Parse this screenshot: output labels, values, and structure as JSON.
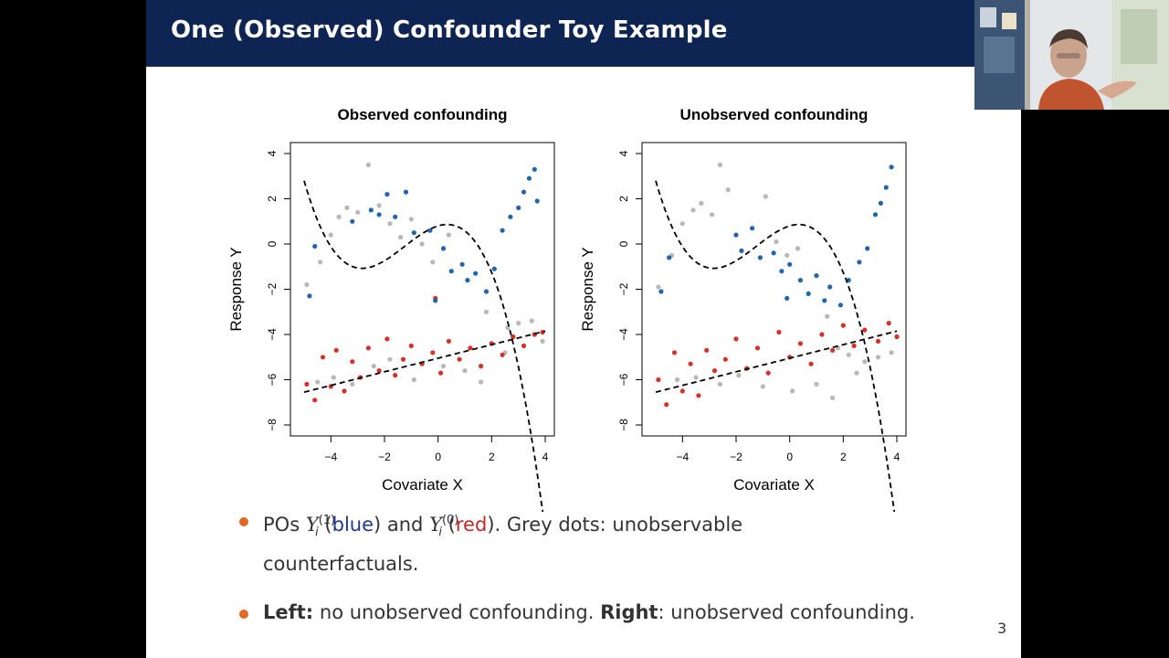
{
  "slide": {
    "title": "One (Observed) Confounder Toy Example",
    "page_number": "3"
  },
  "bullets": {
    "b1": {
      "pre": "POs ",
      "y": "Y",
      "sub": "i",
      "sup1": "(1)",
      "open1": " (",
      "blue": "blue",
      "close1": ") and ",
      "sup0": "(0)",
      "open2": " (",
      "red": "red",
      "close2": "). Grey dots: unobservable",
      "line2": "counterfactuals."
    },
    "b2": {
      "left_bold": "Left:",
      "left_text": " no unobserved confounding. ",
      "right_bold": "Right",
      "right_text": ": unobserved confounding."
    }
  },
  "colors": {
    "title_bar": "#0e2452",
    "bullet": "#e06a22",
    "treated": "#2166ac",
    "control": "#d73027",
    "counterfactual": "#b8b8b8"
  },
  "chart_data": [
    {
      "type": "scatter",
      "title": "Observed confounding",
      "xlabel": "Covariate X",
      "ylabel": "Response Y",
      "xlim": [
        -5,
        4
      ],
      "ylim": [
        -8,
        4
      ],
      "x_ticks": [
        "−4",
        "−2",
        "0",
        "2",
        "4"
      ],
      "y_ticks": [
        "−8",
        "−6",
        "−4",
        "−2",
        "0",
        "2",
        "4"
      ],
      "curves": [
        "E[Y(1)|X] dashed",
        "E[Y(0)|X] dashed"
      ],
      "series": [
        {
          "role": "treated",
          "color": "blue",
          "points": [
            [
              -4.8,
              -2.3
            ],
            [
              -4.6,
              -0.1
            ],
            [
              -3.2,
              1.0
            ],
            [
              -2.5,
              1.5
            ],
            [
              -2.2,
              1.3
            ],
            [
              -1.9,
              2.2
            ],
            [
              -1.6,
              1.2
            ],
            [
              -1.2,
              2.3
            ],
            [
              -0.9,
              0.5
            ],
            [
              -0.3,
              0.6
            ],
            [
              0.2,
              -0.2
            ],
            [
              0.5,
              -1.2
            ],
            [
              0.9,
              -0.9
            ],
            [
              1.1,
              -1.6
            ],
            [
              1.4,
              -1.3
            ],
            [
              1.8,
              -2.1
            ],
            [
              2.1,
              -1.1
            ],
            [
              2.4,
              0.6
            ],
            [
              2.7,
              1.2
            ],
            [
              3.0,
              1.6
            ],
            [
              3.2,
              2.3
            ],
            [
              3.4,
              2.9
            ],
            [
              3.6,
              3.3
            ],
            [
              3.7,
              1.9
            ],
            [
              -0.1,
              -2.5
            ]
          ]
        },
        {
          "role": "control",
          "color": "red",
          "points": [
            [
              -4.9,
              -6.2
            ],
            [
              -4.6,
              -6.9
            ],
            [
              -4.3,
              -5.0
            ],
            [
              -4.0,
              -6.3
            ],
            [
              -3.8,
              -4.7
            ],
            [
              -3.5,
              -6.5
            ],
            [
              -3.2,
              -5.2
            ],
            [
              -2.9,
              -5.9
            ],
            [
              -2.6,
              -4.6
            ],
            [
              -2.2,
              -5.6
            ],
            [
              -1.9,
              -4.2
            ],
            [
              -1.6,
              -5.8
            ],
            [
              -1.3,
              -5.1
            ],
            [
              -1.0,
              -4.5
            ],
            [
              -0.6,
              -5.3
            ],
            [
              -0.2,
              -4.8
            ],
            [
              0.1,
              -5.7
            ],
            [
              0.4,
              -4.3
            ],
            [
              0.8,
              -5.1
            ],
            [
              1.2,
              -4.6
            ],
            [
              1.6,
              -5.4
            ],
            [
              2.0,
              -4.4
            ],
            [
              2.4,
              -4.9
            ],
            [
              2.8,
              -4.1
            ],
            [
              3.2,
              -4.5
            ],
            [
              3.6,
              -4.0
            ],
            [
              3.9,
              -3.9
            ],
            [
              -0.1,
              -2.4
            ]
          ]
        },
        {
          "role": "counterfactual",
          "color": "grey",
          "points": [
            [
              -4.9,
              -1.8
            ],
            [
              -4.4,
              -0.8
            ],
            [
              -4.0,
              0.4
            ],
            [
              -3.7,
              1.2
            ],
            [
              -3.4,
              1.6
            ],
            [
              -3.0,
              1.4
            ],
            [
              -2.6,
              3.5
            ],
            [
              -2.2,
              1.7
            ],
            [
              -1.8,
              0.9
            ],
            [
              -1.4,
              0.3
            ],
            [
              -1.0,
              1.1
            ],
            [
              -0.6,
              0.0
            ],
            [
              -0.2,
              -0.8
            ],
            [
              0.4,
              0.4
            ],
            [
              1.8,
              -3.0
            ],
            [
              2.6,
              -3.7
            ],
            [
              3.0,
              -3.5
            ],
            [
              3.5,
              -3.4
            ],
            [
              3.9,
              -4.3
            ],
            [
              -4.5,
              -6.1
            ],
            [
              -3.9,
              -5.9
            ],
            [
              -3.2,
              -6.2
            ],
            [
              -2.4,
              -5.4
            ],
            [
              -1.8,
              -5.1
            ],
            [
              -0.9,
              -6.0
            ],
            [
              0.2,
              -5.4
            ],
            [
              1.0,
              -5.6
            ],
            [
              1.6,
              -6.1
            ],
            [
              2.5,
              -4.8
            ]
          ]
        }
      ]
    },
    {
      "type": "scatter",
      "title": "Unobserved confounding",
      "xlabel": "Covariate X",
      "ylabel": "Response Y",
      "xlim": [
        -5,
        4
      ],
      "ylim": [
        -8,
        4
      ],
      "x_ticks": [
        "−4",
        "−2",
        "0",
        "2",
        "4"
      ],
      "y_ticks": [
        "−8",
        "−6",
        "−4",
        "−2",
        "0",
        "2",
        "4"
      ],
      "curves": [
        "E[Y(1)|X] dashed",
        "E[Y(0)|X] dashed"
      ],
      "series": [
        {
          "role": "treated",
          "color": "blue",
          "points": [
            [
              -4.8,
              -2.1
            ],
            [
              -4.5,
              -0.6
            ],
            [
              -2.0,
              0.4
            ],
            [
              -1.8,
              -0.3
            ],
            [
              -1.4,
              0.7
            ],
            [
              -1.1,
              -0.6
            ],
            [
              -0.6,
              -0.4
            ],
            [
              -0.3,
              -1.2
            ],
            [
              0.0,
              -0.9
            ],
            [
              0.4,
              -1.6
            ],
            [
              0.7,
              -2.2
            ],
            [
              1.0,
              -1.4
            ],
            [
              1.3,
              -2.5
            ],
            [
              1.5,
              -1.9
            ],
            [
              1.9,
              -2.7
            ],
            [
              2.2,
              -1.6
            ],
            [
              2.6,
              -0.8
            ],
            [
              2.9,
              -0.2
            ],
            [
              3.2,
              1.3
            ],
            [
              3.4,
              1.8
            ],
            [
              3.6,
              2.5
            ],
            [
              3.8,
              3.4
            ],
            [
              -0.1,
              -2.4
            ]
          ]
        },
        {
          "role": "control",
          "color": "red",
          "points": [
            [
              -4.9,
              -6.0
            ],
            [
              -4.6,
              -7.1
            ],
            [
              -4.3,
              -4.8
            ],
            [
              -4.0,
              -6.5
            ],
            [
              -3.7,
              -5.3
            ],
            [
              -3.4,
              -6.7
            ],
            [
              -3.1,
              -4.7
            ],
            [
              -2.8,
              -5.6
            ],
            [
              -2.4,
              -5.1
            ],
            [
              -2.0,
              -4.2
            ],
            [
              -1.6,
              -5.5
            ],
            [
              -1.2,
              -4.6
            ],
            [
              -0.8,
              -5.7
            ],
            [
              -0.4,
              -3.9
            ],
            [
              0.0,
              -5.0
            ],
            [
              0.4,
              -4.4
            ],
            [
              0.8,
              -5.3
            ],
            [
              1.2,
              -4.0
            ],
            [
              1.6,
              -4.7
            ],
            [
              2.0,
              -3.6
            ],
            [
              2.4,
              -4.5
            ],
            [
              2.8,
              -3.8
            ],
            [
              3.3,
              -4.3
            ],
            [
              3.7,
              -3.5
            ],
            [
              4.0,
              -4.1
            ]
          ]
        },
        {
          "role": "counterfactual",
          "color": "grey",
          "points": [
            [
              -4.9,
              -1.9
            ],
            [
              -4.4,
              -0.5
            ],
            [
              -4.0,
              0.9
            ],
            [
              -3.6,
              1.5
            ],
            [
              -3.3,
              1.8
            ],
            [
              -2.9,
              1.3
            ],
            [
              -2.6,
              3.5
            ],
            [
              -2.3,
              2.4
            ],
            [
              -0.9,
              2.1
            ],
            [
              -0.5,
              0.1
            ],
            [
              -0.1,
              -0.5
            ],
            [
              0.3,
              -0.2
            ],
            [
              1.4,
              -3.2
            ],
            [
              1.8,
              -4.6
            ],
            [
              2.2,
              -4.9
            ],
            [
              2.8,
              -5.2
            ],
            [
              3.3,
              -5.0
            ],
            [
              3.8,
              -4.8
            ],
            [
              -4.2,
              -6.0
            ],
            [
              -3.5,
              -5.9
            ],
            [
              -2.6,
              -6.2
            ],
            [
              -1.9,
              -5.8
            ],
            [
              -1.0,
              -6.3
            ],
            [
              0.1,
              -6.5
            ],
            [
              1.0,
              -6.2
            ],
            [
              1.6,
              -6.8
            ],
            [
              2.5,
              -5.7
            ]
          ]
        }
      ]
    }
  ]
}
